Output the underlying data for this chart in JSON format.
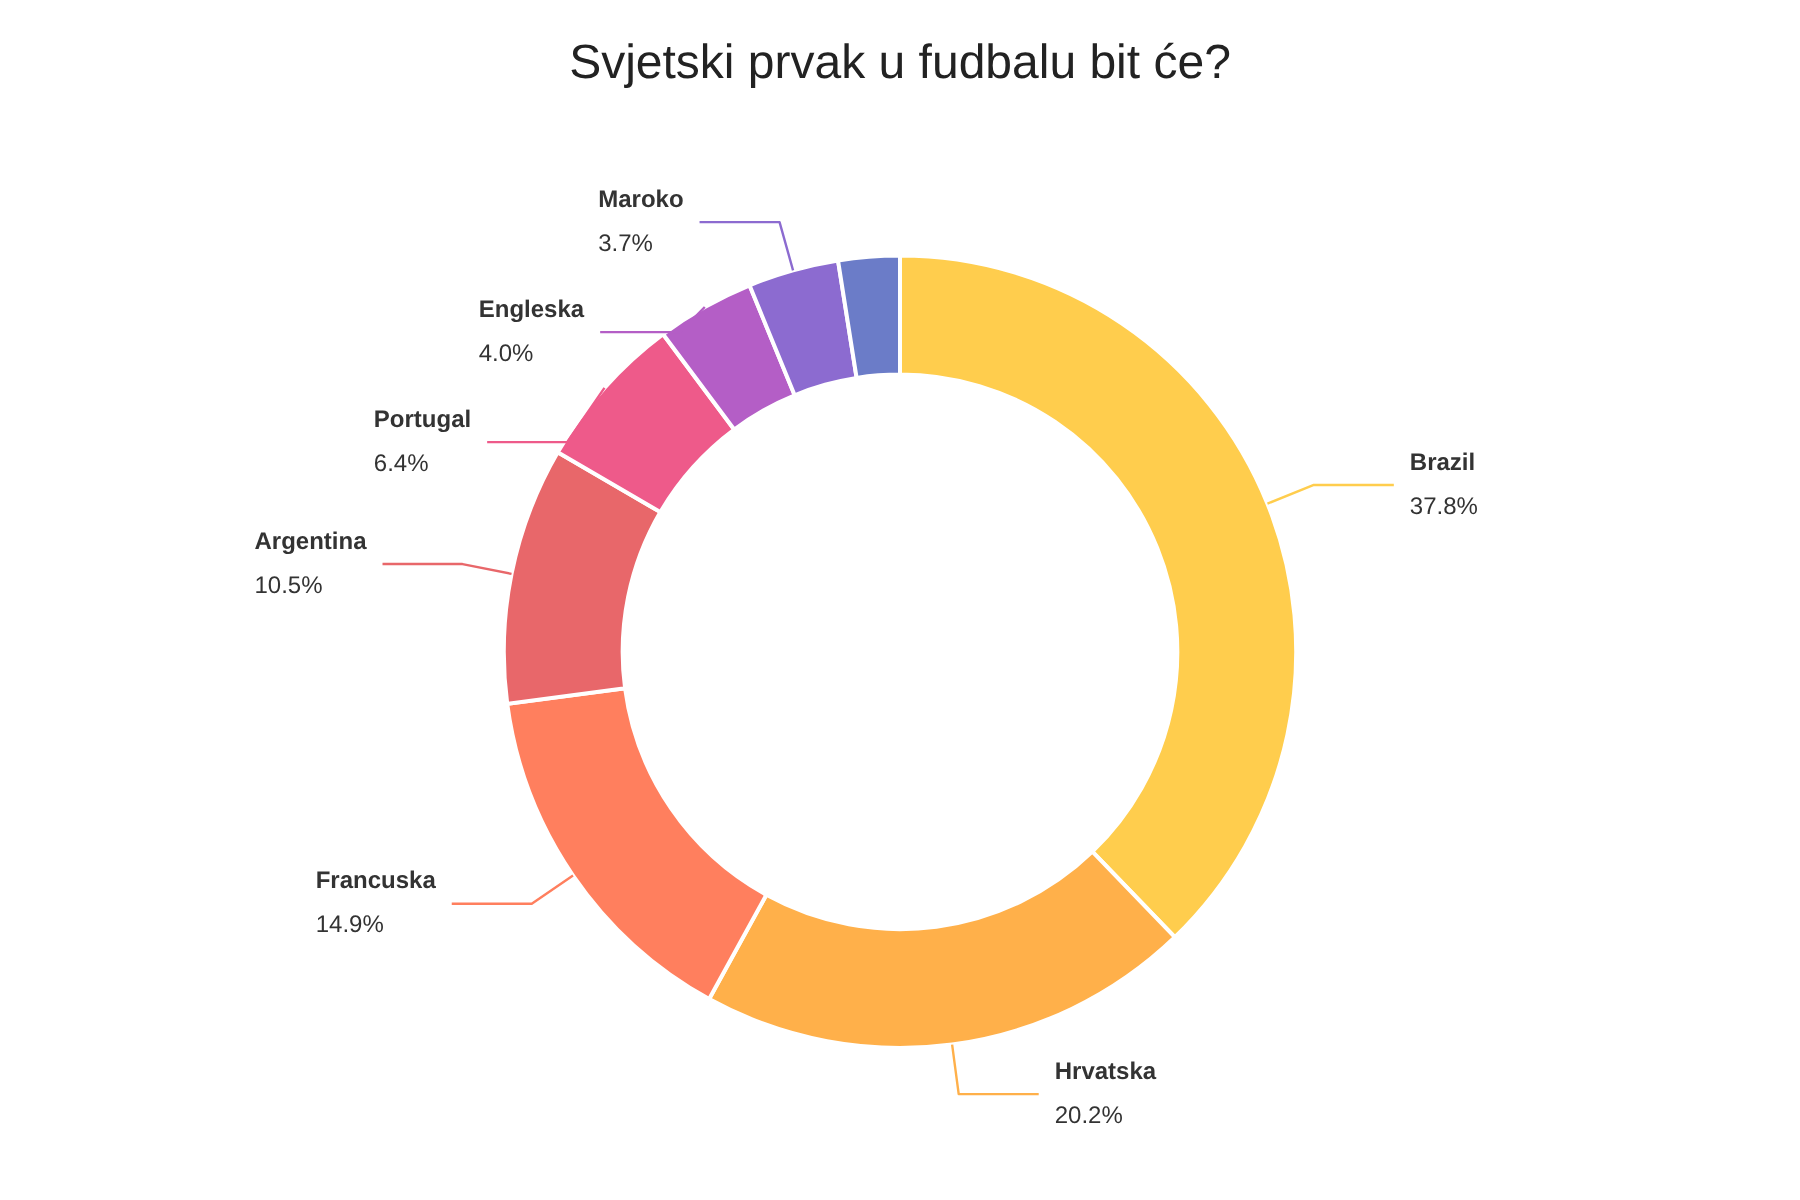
{
  "chart_data": {
    "type": "donut",
    "title": "Svjetski prvak u fudbalu bit će?",
    "categories": [
      "Brazil",
      "Hrvatska",
      "Francuska",
      "Argentina",
      "Portugal",
      "Engleska",
      "Maroko",
      null
    ],
    "values": [
      37.8,
      20.2,
      14.9,
      10.5,
      6.4,
      4.0,
      3.7,
      2.5
    ],
    "colors": [
      "#ffcd4d",
      "#ffb04a",
      "#ff7f5e",
      "#e8676a",
      "#ee5a8a",
      "#b45ec6",
      "#8c6bd0",
      "#6b7cc8"
    ],
    "value_labels": [
      "37.8%",
      "20.2%",
      "14.9%",
      "10.5%",
      "6.4%",
      "4.0%",
      "3.7%",
      null
    ],
    "legend": false
  }
}
